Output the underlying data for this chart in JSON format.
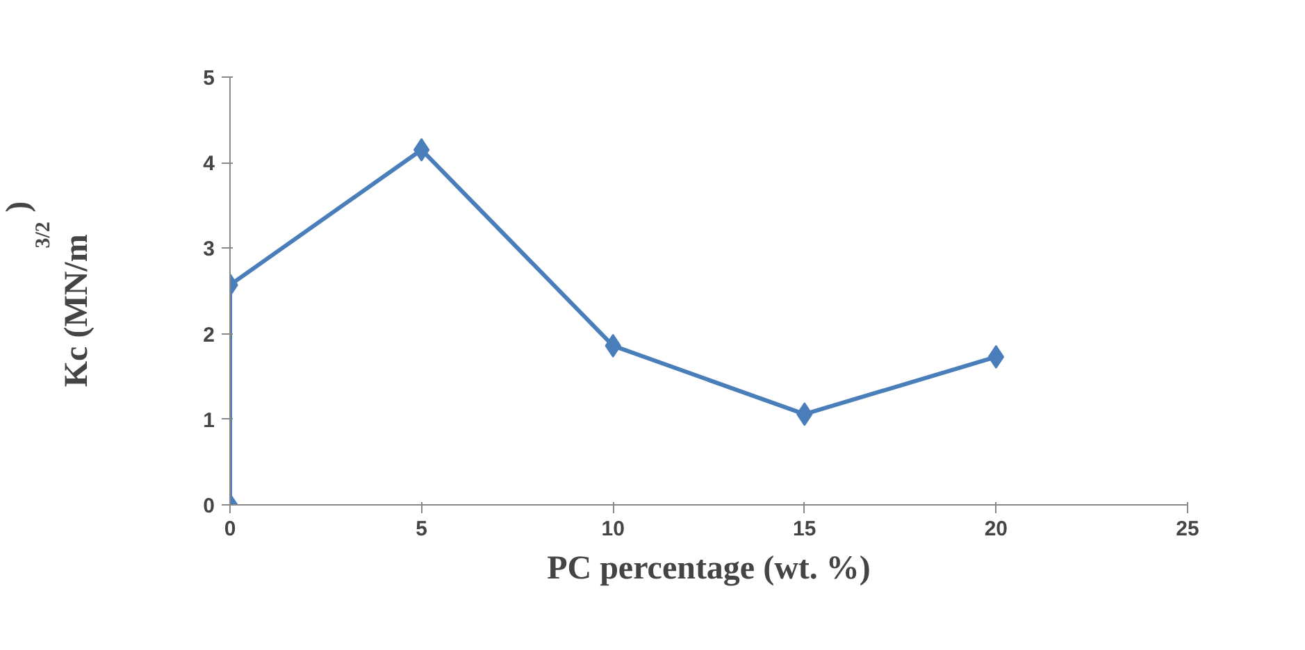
{
  "chart_data": {
    "type": "line",
    "xlabel": "PC percentage (wt. %)",
    "ylabel": "Kc (MN/m$^{3/2}$)",
    "x": [
      0,
      0,
      5,
      10,
      15,
      20
    ],
    "series": [
      {
        "color": "#4a7ebb",
        "values": [
          0,
          2.57,
          4.15,
          1.86,
          1.06,
          1.73
        ]
      }
    ],
    "xlim": [
      0,
      25
    ],
    "ylim": [
      0,
      5
    ],
    "xticks": [
      0,
      5,
      10,
      15,
      20,
      25
    ],
    "yticks": [
      0,
      1,
      2,
      3,
      4,
      5
    ],
    "marker": "diamond",
    "line_style": "solid",
    "grid": false
  }
}
